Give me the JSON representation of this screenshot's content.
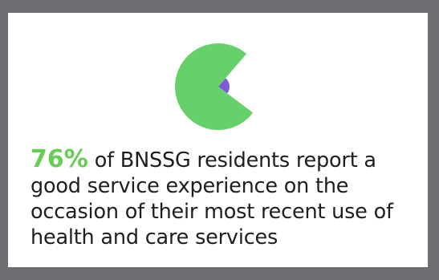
{
  "infographic": {
    "stat_value": "76%",
    "stat_text": " of BNSSG residents report a good service experience on the occasion of their most recent use of health and care services"
  },
  "colors": {
    "frame": "#6e6e72",
    "card": "#ffffff",
    "stat_accent": "#66cc55",
    "pie_main": "#66d16a",
    "pie_minor": "#7d5ad6"
  },
  "chart_data": {
    "type": "pie",
    "values": [
      76,
      24
    ],
    "title": ""
  }
}
